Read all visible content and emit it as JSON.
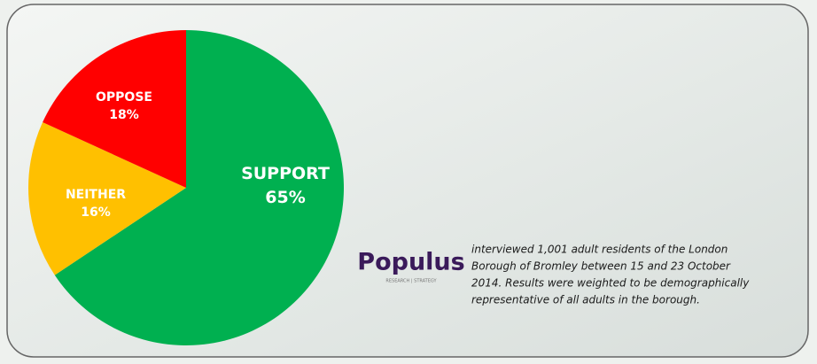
{
  "chart_data": {
    "type": "pie",
    "categories": [
      "SUPPORT",
      "NEITHER",
      "OPPOSE"
    ],
    "values": [
      65,
      16,
      18
    ],
    "value_labels": [
      "65%",
      "16%",
      "18%"
    ],
    "colors": [
      "#00b050",
      "#ffc000",
      "#ff0000"
    ]
  },
  "logo": {
    "name": "Populus",
    "tagline": "RESEARCH | STRATEGY"
  },
  "note": [
    "interviewed 1,001 adult residents of the London",
    "Borough of Bromley between 15 and 23 October",
    "2014.  Results were weighted to be demographically",
    "representative of all adults in the borough."
  ]
}
